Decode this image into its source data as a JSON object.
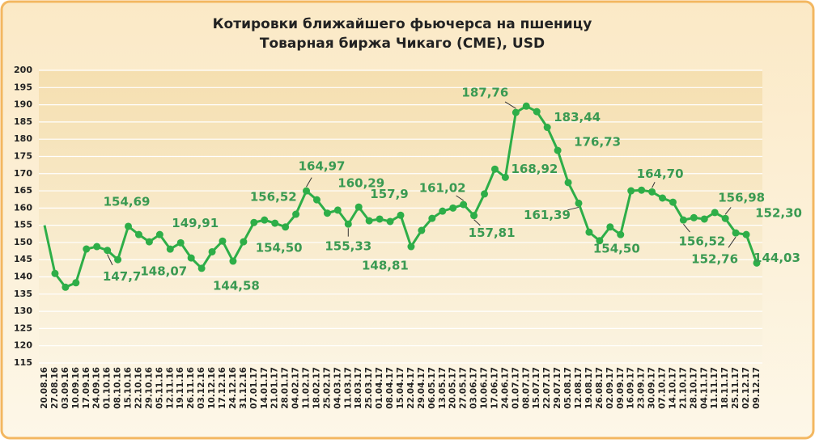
{
  "chart_data": {
    "type": "line",
    "title": "Котировки ближайшего фьючерса на пшеницу",
    "subtitle": "Товарная биржа Чикаго (CME), USD",
    "categories": [
      "20.08.16",
      "27.08.16",
      "03.09.16",
      "10.09.16",
      "17.09.16",
      "24.09.16",
      "01.10.16",
      "08.10.16",
      "15.10.16",
      "22.10.16",
      "29.10.16",
      "05.11.16",
      "12.11.16",
      "19.11.16",
      "26.11.16",
      "03.12.16",
      "10.12.16",
      "17.12.16",
      "24.12.16",
      "31.12.16",
      "07.01.17",
      "14.01.17",
      "21.01.17",
      "28.01.17",
      "04.02.17",
      "11.02.17",
      "18.02.17",
      "25.02.17",
      "04.03.17",
      "11.03.17",
      "18.03.17",
      "25.03.17",
      "01.04.17",
      "08.04.17",
      "15.04.17",
      "22.04.17",
      "29.04.17",
      "06.05.17",
      "13.05.17",
      "20.05.17",
      "27.05.17",
      "03.06.17",
      "10.06.17",
      "17.06.17",
      "24.06.17",
      "01.07.17",
      "08.07.17",
      "15.07.17",
      "22.07.17",
      "29.07.17",
      "05.08.17",
      "12.08.17",
      "19.08.17",
      "26.08.17",
      "02.09.17",
      "09.09.17",
      "16.09.17",
      "23.09.17",
      "30.09.17",
      "07.10.17",
      "14.10.17",
      "21.10.17",
      "28.10.17",
      "04.11.17",
      "11.11.17",
      "18.11.17",
      "25.11.17",
      "02.12.17",
      "09.12.17"
    ],
    "series": [
      {
        "name": "Котировки",
        "color": "#2eae48",
        "values": [
          155,
          141,
          137,
          138.3,
          148.1,
          148.8,
          147.7,
          145,
          154.69,
          152.3,
          150.2,
          152.3,
          148.07,
          149.91,
          145.5,
          142.5,
          147.3,
          150.4,
          144.58,
          150.2,
          155.8,
          156.52,
          155.6,
          154.5,
          158.2,
          164.97,
          162.4,
          158.5,
          159.4,
          155.33,
          160.29,
          156.3,
          156.8,
          156.1,
          157.9,
          148.81,
          153.5,
          157,
          159.1,
          160,
          161.02,
          157.81,
          164.1,
          171.3,
          168.92,
          187.76,
          189.6,
          188,
          183.44,
          176.73,
          167.4,
          161.39,
          153,
          150.5,
          154.5,
          152.3,
          165,
          165.2,
          164.7,
          162.9,
          161.7,
          156.52,
          157.2,
          156.8,
          158.7,
          156.98,
          152.76,
          152.3,
          144.03
        ],
        "value_labels": [
          null,
          null,
          null,
          null,
          null,
          null,
          "147,7",
          null,
          "154,69",
          null,
          null,
          null,
          "148,07",
          "149,91",
          null,
          null,
          null,
          null,
          "144,58",
          null,
          null,
          "156,52",
          null,
          "154,50",
          null,
          "164,97",
          null,
          null,
          null,
          "155,33",
          "160,29",
          null,
          null,
          null,
          "157,9",
          "148,81",
          null,
          null,
          null,
          null,
          "161,02",
          "157,81",
          null,
          null,
          "168,92",
          "187,76",
          null,
          null,
          "183,44",
          "176,73",
          null,
          "161,39",
          null,
          null,
          "154,50",
          null,
          null,
          null,
          "164,70",
          null,
          null,
          "156,52",
          null,
          null,
          null,
          "156,98",
          "152,76",
          "152,30",
          "144,03"
        ]
      }
    ],
    "ylim": [
      115,
      200
    ],
    "yticks": [
      115,
      120,
      125,
      130,
      135,
      140,
      145,
      150,
      155,
      160,
      165,
      170,
      175,
      180,
      185,
      190,
      195,
      200
    ],
    "grid": true
  }
}
